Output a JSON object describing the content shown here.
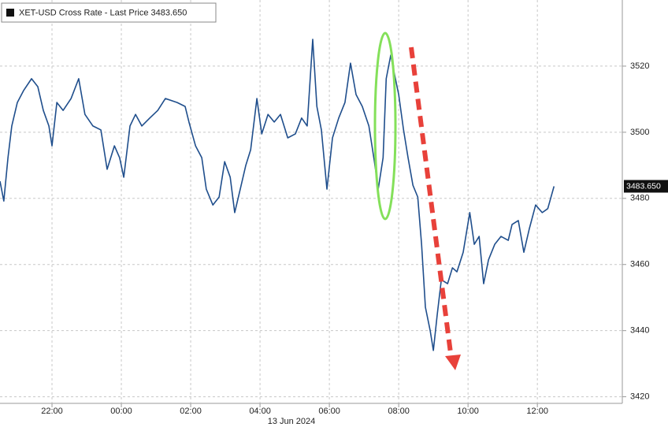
{
  "chart_data": {
    "type": "line",
    "date_label": "13 Jun 2024",
    "x": [
      -3.5,
      -3.39,
      -3.27,
      -3.16,
      -3.0,
      -2.82,
      -2.59,
      -2.41,
      -2.25,
      -2.09,
      -2.0,
      -1.86,
      -1.68,
      -1.45,
      -1.23,
      -1.05,
      -0.82,
      -0.59,
      -0.41,
      -0.2,
      -0.05,
      0.07,
      0.25,
      0.41,
      0.59,
      0.82,
      1.05,
      1.27,
      1.61,
      1.84,
      1.95,
      2.14,
      2.32,
      2.45,
      2.64,
      2.82,
      2.98,
      3.14,
      3.27,
      3.43,
      3.59,
      3.73,
      3.91,
      4.05,
      4.23,
      4.41,
      4.59,
      4.8,
      5.02,
      5.2,
      5.36,
      5.52,
      5.64,
      5.77,
      5.93,
      6.09,
      6.27,
      6.45,
      6.61,
      6.77,
      6.95,
      7.14,
      7.3,
      7.41,
      7.55,
      7.64,
      7.77,
      7.86,
      8.0,
      8.14,
      8.27,
      8.41,
      8.55,
      8.66,
      8.77,
      8.91,
      9.0,
      9.11,
      9.23,
      9.41,
      9.55,
      9.68,
      9.86,
      10.05,
      10.18,
      10.32,
      10.45,
      10.59,
      10.77,
      10.95,
      11.16,
      11.27,
      11.45,
      11.61,
      11.77,
      11.95,
      12.14,
      12.3,
      12.48
    ],
    "series": [
      {
        "name": "XET-USD Cross Rate  - Last Price 3483.650",
        "color": "#1f4e8c",
        "values": [
          3485.2,
          3479.2,
          3492.3,
          3501.9,
          3509.0,
          3512.6,
          3516.2,
          3513.8,
          3506.6,
          3501.9,
          3495.9,
          3509.0,
          3506.6,
          3510.2,
          3516.2,
          3505.4,
          3501.9,
          3500.7,
          3488.8,
          3495.9,
          3492.3,
          3486.4,
          3501.9,
          3505.4,
          3501.9,
          3504.3,
          3506.6,
          3510.2,
          3509.0,
          3507.8,
          3503.1,
          3495.9,
          3492.3,
          3482.8,
          3478.0,
          3480.4,
          3491.1,
          3486.4,
          3475.7,
          3482.8,
          3490.0,
          3494.7,
          3510.2,
          3499.5,
          3505.4,
          3503.1,
          3505.4,
          3498.3,
          3499.5,
          3504.3,
          3501.9,
          3528.1,
          3507.8,
          3500.7,
          3482.8,
          3498.3,
          3504.3,
          3509.0,
          3520.9,
          3511.4,
          3507.8,
          3501.9,
          3491.1,
          3482.8,
          3492.3,
          3516.2,
          3523.3,
          3518.5,
          3511.4,
          3500.7,
          3492.3,
          3484.0,
          3480.4,
          3466.1,
          3447.1,
          3439.9,
          3434.0,
          3444.7,
          3455.4,
          3454.2,
          3459.0,
          3457.8,
          3463.7,
          3475.7,
          3466.1,
          3468.5,
          3454.2,
          3461.4,
          3466.1,
          3468.5,
          3467.3,
          3472.1,
          3473.3,
          3463.7,
          3470.9,
          3478.0,
          3475.7,
          3476.9,
          3483.65
        ]
      }
    ],
    "last_price": {
      "value": 3483.65,
      "label": "3483.650"
    },
    "xlim": [
      -3.5,
      14.45
    ],
    "xticks": [
      {
        "value": -2,
        "label": "22:00"
      },
      {
        "value": 0,
        "label": "00:00"
      },
      {
        "value": 2,
        "label": "02:00"
      },
      {
        "value": 4,
        "label": "04:00"
      },
      {
        "value": 6,
        "label": "06:00"
      },
      {
        "value": 8,
        "label": "08:00"
      },
      {
        "value": 10,
        "label": "10:00"
      },
      {
        "value": 12,
        "label": "12:00"
      }
    ],
    "ylim": [
      3418,
      3540
    ],
    "yticks": [
      3420,
      3440,
      3460,
      3480,
      3500,
      3520
    ],
    "grid": true
  }
}
